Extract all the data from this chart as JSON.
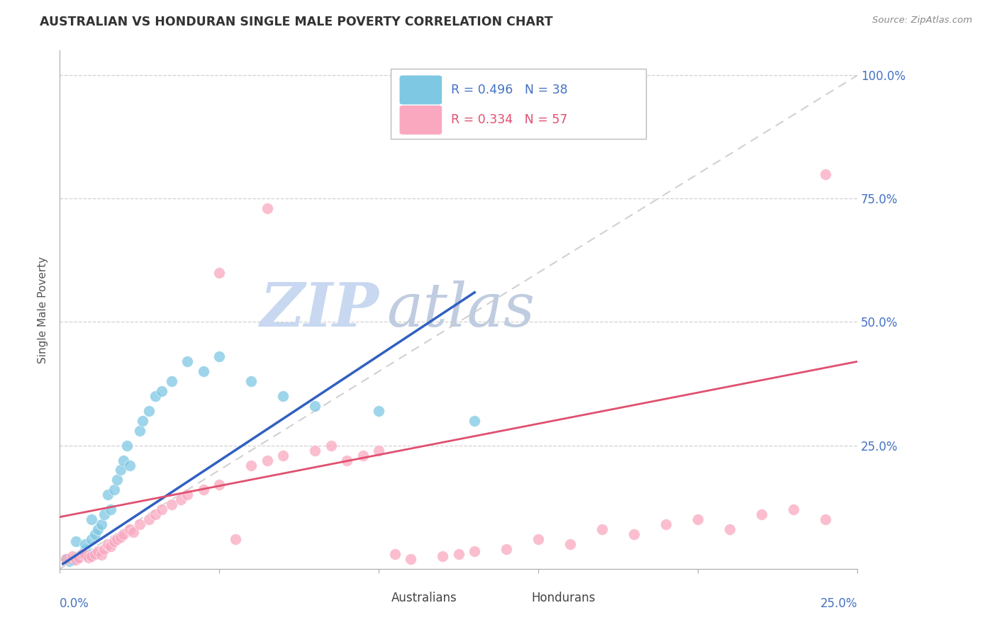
{
  "title": "AUSTRALIAN VS HONDURAN SINGLE MALE POVERTY CORRELATION CHART",
  "source": "Source: ZipAtlas.com",
  "ylabel": "Single Male Poverty",
  "xlim": [
    0.0,
    0.25
  ],
  "ylim": [
    0.0,
    1.05
  ],
  "ytick_values": [
    0.0,
    0.25,
    0.5,
    0.75,
    1.0
  ],
  "legend_r_aus": "R = 0.496",
  "legend_n_aus": "N = 38",
  "legend_r_hon": "R = 0.334",
  "legend_n_hon": "N = 57",
  "color_aus": "#7ec8e3",
  "color_hon": "#f9a8c0",
  "color_aus_line": "#3060c0",
  "color_hon_line": "#e05070",
  "color_diag": "#cccccc",
  "color_axis_labels": "#4472c4",
  "color_title": "#333333",
  "watermark_zip": "#c8d8f0",
  "watermark_atlas": "#c0cce0",
  "aus_x": [
    0.002,
    0.003,
    0.004,
    0.005,
    0.005,
    0.006,
    0.007,
    0.008,
    0.008,
    0.009,
    0.01,
    0.01,
    0.011,
    0.012,
    0.013,
    0.014,
    0.015,
    0.016,
    0.017,
    0.018,
    0.019,
    0.02,
    0.021,
    0.022,
    0.025,
    0.026,
    0.028,
    0.03,
    0.032,
    0.035,
    0.04,
    0.045,
    0.05,
    0.06,
    0.07,
    0.08,
    0.1,
    0.13
  ],
  "aus_y": [
    0.02,
    0.015,
    0.018,
    0.022,
    0.055,
    0.025,
    0.03,
    0.038,
    0.05,
    0.028,
    0.06,
    0.1,
    0.07,
    0.08,
    0.09,
    0.11,
    0.15,
    0.12,
    0.16,
    0.18,
    0.2,
    0.22,
    0.25,
    0.21,
    0.28,
    0.3,
    0.32,
    0.35,
    0.36,
    0.38,
    0.42,
    0.4,
    0.43,
    0.38,
    0.35,
    0.33,
    0.32,
    0.3
  ],
  "aus_line_x": [
    0.001,
    0.13
  ],
  "aus_line_y": [
    0.01,
    0.56
  ],
  "hon_x": [
    0.002,
    0.004,
    0.005,
    0.006,
    0.007,
    0.008,
    0.009,
    0.01,
    0.011,
    0.012,
    0.013,
    0.014,
    0.015,
    0.016,
    0.017,
    0.018,
    0.019,
    0.02,
    0.022,
    0.023,
    0.025,
    0.028,
    0.03,
    0.032,
    0.035,
    0.038,
    0.04,
    0.045,
    0.05,
    0.055,
    0.06,
    0.065,
    0.07,
    0.08,
    0.085,
    0.09,
    0.095,
    0.1,
    0.105,
    0.11,
    0.12,
    0.125,
    0.13,
    0.14,
    0.15,
    0.16,
    0.17,
    0.18,
    0.19,
    0.2,
    0.21,
    0.22,
    0.23,
    0.24,
    0.05,
    0.065,
    0.24
  ],
  "hon_y": [
    0.02,
    0.025,
    0.018,
    0.022,
    0.03,
    0.028,
    0.022,
    0.025,
    0.03,
    0.035,
    0.028,
    0.04,
    0.05,
    0.045,
    0.055,
    0.06,
    0.065,
    0.07,
    0.08,
    0.075,
    0.09,
    0.1,
    0.11,
    0.12,
    0.13,
    0.14,
    0.15,
    0.16,
    0.17,
    0.06,
    0.21,
    0.22,
    0.23,
    0.24,
    0.25,
    0.22,
    0.23,
    0.24,
    0.03,
    0.02,
    0.025,
    0.03,
    0.035,
    0.04,
    0.06,
    0.05,
    0.08,
    0.07,
    0.09,
    0.1,
    0.08,
    0.11,
    0.12,
    0.1,
    0.6,
    0.73,
    0.8
  ],
  "hon_line_x": [
    0.0,
    0.25
  ],
  "hon_line_y": [
    0.105,
    0.42
  ]
}
